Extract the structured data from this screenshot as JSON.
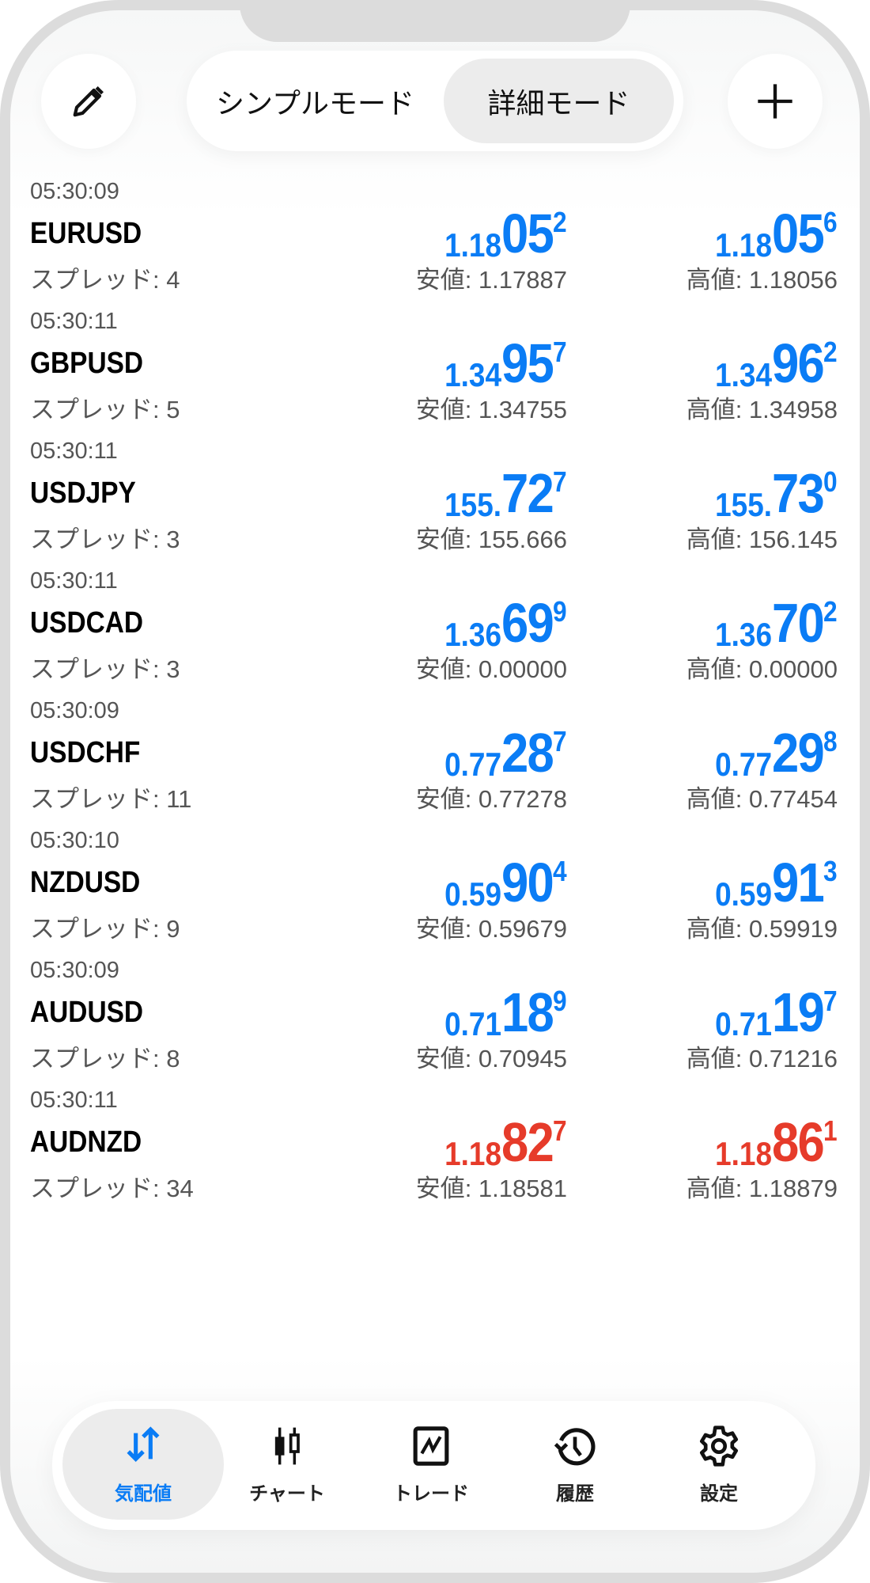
{
  "colors": {
    "up": "#0a7cf5",
    "down": "#e63b2a",
    "accent": "#0a7cf5"
  },
  "header": {
    "edit_icon": "pencil-icon",
    "add_icon": "plus-icon",
    "modes": [
      {
        "label": "シンプルモード",
        "active": false
      },
      {
        "label": "詳細モード",
        "active": true
      }
    ]
  },
  "quotes": [
    {
      "time": "05:30:09",
      "symbol": "EURUSD",
      "spread": "スプレッド: 4",
      "bid": {
        "a": "1.18",
        "b": "05",
        "c": "2"
      },
      "ask": {
        "a": "1.18",
        "b": "05",
        "c": "6"
      },
      "low": "安値: 1.17887",
      "high": "高値: 1.18056",
      "dir": "up"
    },
    {
      "time": "05:30:11",
      "symbol": "GBPUSD",
      "spread": "スプレッド: 5",
      "bid": {
        "a": "1.34",
        "b": "95",
        "c": "7"
      },
      "ask": {
        "a": "1.34",
        "b": "96",
        "c": "2"
      },
      "low": "安値: 1.34755",
      "high": "高値: 1.34958",
      "dir": "up"
    },
    {
      "time": "05:30:11",
      "symbol": "USDJPY",
      "spread": "スプレッド: 3",
      "bid": {
        "a": "155.",
        "b": "72",
        "c": "7"
      },
      "ask": {
        "a": "155.",
        "b": "73",
        "c": "0"
      },
      "low": "安値: 155.666",
      "high": "高値: 156.145",
      "dir": "up"
    },
    {
      "time": "05:30:11",
      "symbol": "USDCAD",
      "spread": "スプレッド: 3",
      "bid": {
        "a": "1.36",
        "b": "69",
        "c": "9"
      },
      "ask": {
        "a": "1.36",
        "b": "70",
        "c": "2"
      },
      "low": "安値: 0.00000",
      "high": "高値: 0.00000",
      "dir": "up"
    },
    {
      "time": "05:30:09",
      "symbol": "USDCHF",
      "spread": "スプレッド: 11",
      "bid": {
        "a": "0.77",
        "b": "28",
        "c": "7"
      },
      "ask": {
        "a": "0.77",
        "b": "29",
        "c": "8"
      },
      "low": "安値: 0.77278",
      "high": "高値: 0.77454",
      "dir": "up"
    },
    {
      "time": "05:30:10",
      "symbol": "NZDUSD",
      "spread": "スプレッド: 9",
      "bid": {
        "a": "0.59",
        "b": "90",
        "c": "4"
      },
      "ask": {
        "a": "0.59",
        "b": "91",
        "c": "3"
      },
      "low": "安値: 0.59679",
      "high": "高値: 0.59919",
      "dir": "up"
    },
    {
      "time": "05:30:09",
      "symbol": "AUDUSD",
      "spread": "スプレッド: 8",
      "bid": {
        "a": "0.71",
        "b": "18",
        "c": "9"
      },
      "ask": {
        "a": "0.71",
        "b": "19",
        "c": "7"
      },
      "low": "安値: 0.70945",
      "high": "高値: 0.71216",
      "dir": "up"
    },
    {
      "time": "05:30:11",
      "symbol": "AUDNZD",
      "spread": "スプレッド: 34",
      "bid": {
        "a": "1.18",
        "b": "82",
        "c": "7"
      },
      "ask": {
        "a": "1.18",
        "b": "86",
        "c": "1"
      },
      "low": "安値: 1.18581",
      "high": "高値: 1.18879",
      "dir": "down"
    }
  ],
  "nav": [
    {
      "label": "気配値",
      "icon": "quotes-arrows-icon",
      "active": true
    },
    {
      "label": "チャート",
      "icon": "candlestick-chart-icon",
      "active": false
    },
    {
      "label": "トレード",
      "icon": "trade-chart-icon",
      "active": false
    },
    {
      "label": "履歴",
      "icon": "history-icon",
      "active": false
    },
    {
      "label": "設定",
      "icon": "gear-icon",
      "active": false
    }
  ]
}
